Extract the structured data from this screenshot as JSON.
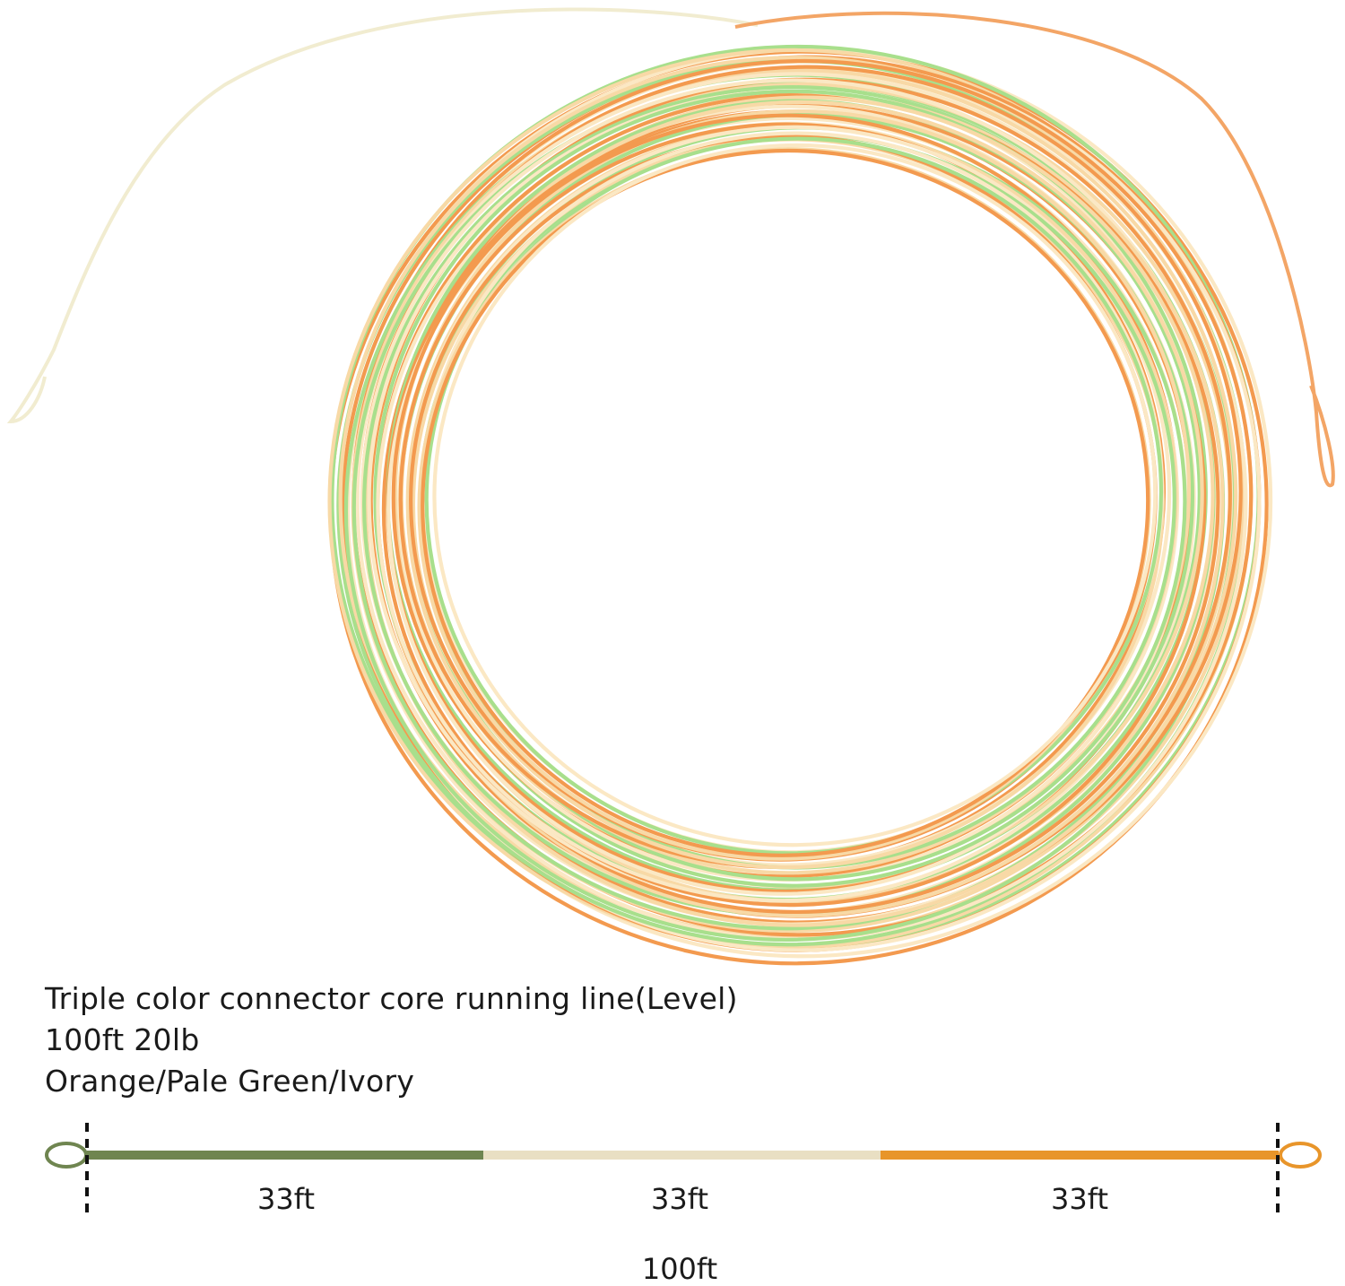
{
  "product": {
    "title": "Triple color connector core running line(Level)",
    "specs": "100ft  20lb",
    "colors": "Orange/Pale Green/Ivory"
  },
  "diagram": {
    "segments": [
      {
        "label": "33ft",
        "color": "#6f8550"
      },
      {
        "label": "33ft",
        "color": "#e9dfc3"
      },
      {
        "label": "33ft",
        "color": "#e8952a"
      }
    ],
    "total_label": "100ft",
    "left_loop_color": "#6f8550",
    "right_loop_color": "#e8952a"
  },
  "coil": {
    "colors": [
      "#f39a4f",
      "#f8d9a6",
      "#a8df8c",
      "#fbe8c4"
    ]
  }
}
